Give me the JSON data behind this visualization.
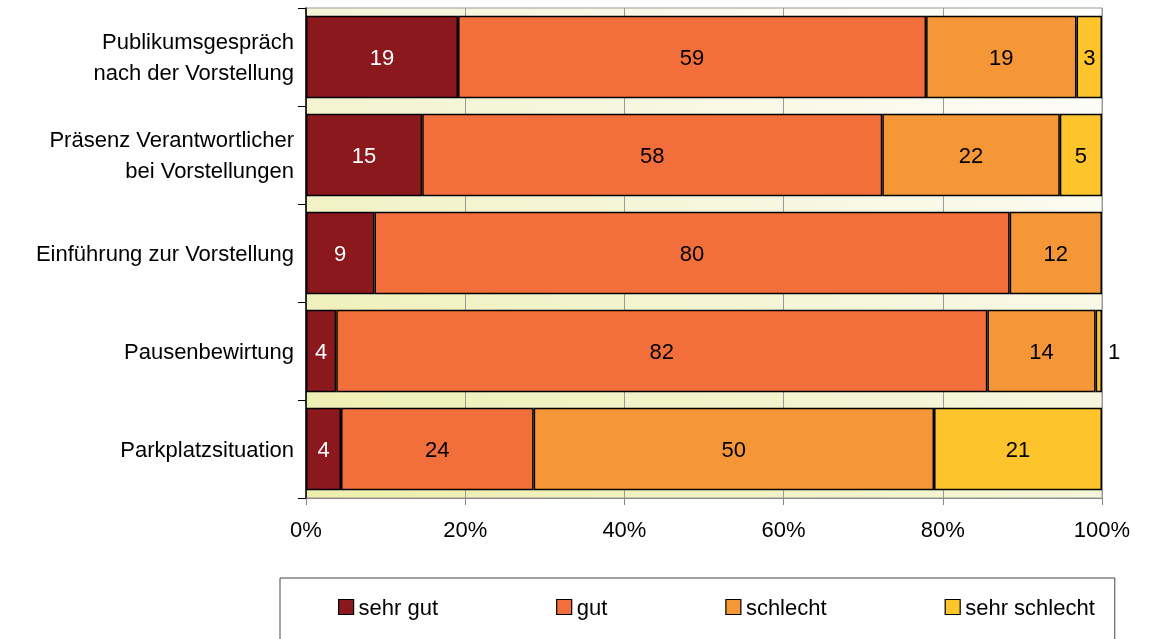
{
  "chart_data": {
    "type": "bar",
    "orientation": "horizontal",
    "stacked": true,
    "categories": [
      "Publikumsgespräch\nnach der Vorstellung",
      "Präsenz Verantwortlicher\nbei Vorstellungen",
      "Einführung zur Vorstellung",
      "Pausenbewirtung",
      "Parkplatzsituation"
    ],
    "series": [
      {
        "name": "sehr gut",
        "color": "#8b181d",
        "values": [
          19.1,
          14.6,
          8.6,
          3.8,
          4.4
        ],
        "value_labels": [
          "19",
          "15",
          "9",
          "4",
          "4"
        ]
      },
      {
        "name": "gut",
        "color": "#f26f3b",
        "values": [
          58.8,
          57.8,
          79.8,
          81.8,
          24.2
        ],
        "value_labels": [
          "59",
          "58",
          "80",
          "82",
          "24"
        ]
      },
      {
        "name": "schlecht",
        "color": "#f59637",
        "values": [
          18.9,
          22.3,
          11.6,
          13.6,
          50.3
        ],
        "value_labels": [
          "19",
          "22",
          "12",
          "14",
          "50"
        ]
      },
      {
        "name": "sehr schlecht",
        "color": "#fdc42c",
        "values": [
          3.2,
          5.3,
          null,
          0.8,
          21.1
        ],
        "value_labels": [
          "3",
          "5",
          null,
          "1",
          "21"
        ]
      }
    ],
    "xlim": [
      0,
      100
    ],
    "xticks": [
      {
        "value": 0,
        "label": "0%"
      },
      {
        "value": 20,
        "label": "20%"
      },
      {
        "value": 40,
        "label": "40%"
      },
      {
        "value": 60,
        "label": "60%"
      },
      {
        "value": 80,
        "label": "80%"
      },
      {
        "value": 100,
        "label": "100%"
      }
    ],
    "grid": "x",
    "legend": "bottom"
  }
}
